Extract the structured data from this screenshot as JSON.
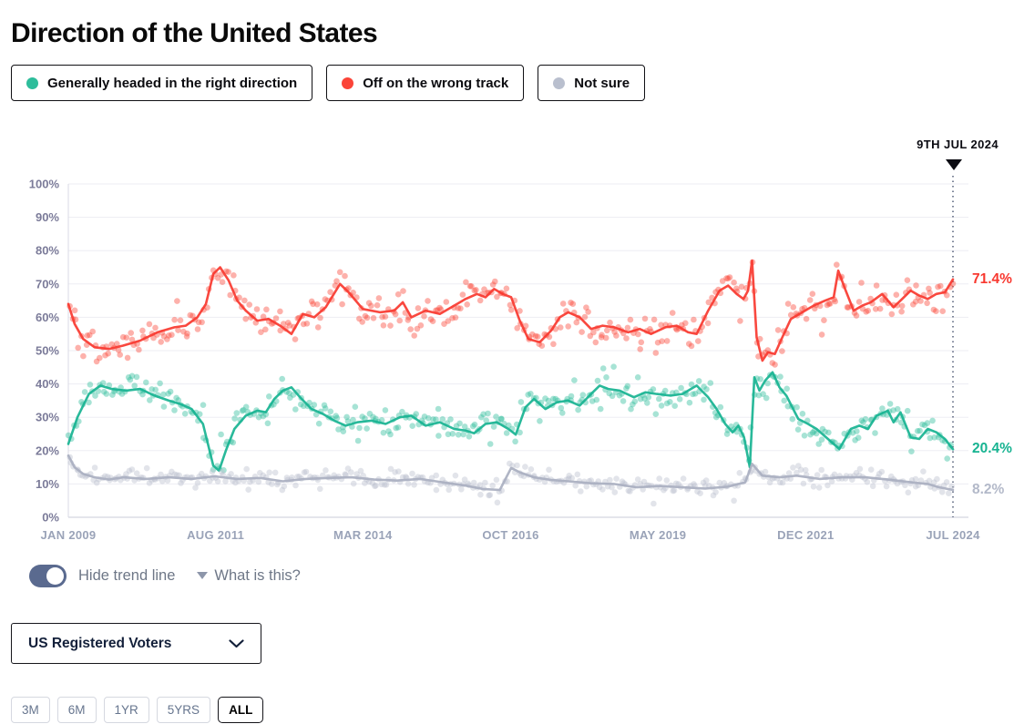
{
  "page": {
    "title": "Direction of the United States"
  },
  "legend": {
    "items": [
      {
        "label": "Generally headed in the right direction",
        "color": "#2ebd9b"
      },
      {
        "label": "Off on the wrong track",
        "color": "#fb4438"
      },
      {
        "label": "Not sure",
        "color": "#b9bfce"
      }
    ]
  },
  "controls": {
    "trend_toggle_label": "Hide trend line",
    "trend_toggle_on": true,
    "help_label": "What is this?",
    "population_select": {
      "value": "US Registered Voters"
    },
    "ranges": {
      "items": [
        "3M",
        "6M",
        "1YR",
        "5YRS",
        "ALL"
      ],
      "active": "ALL"
    }
  },
  "chart_data": {
    "type": "scatter",
    "title": "Direction of the United States",
    "marker_label": "9TH JUL 2024",
    "grid": "horizontal",
    "legend_position": "top",
    "ylim": [
      0,
      100
    ],
    "yticks": [
      0,
      10,
      20,
      30,
      40,
      50,
      60,
      70,
      80,
      90,
      100
    ],
    "ytick_suffix": "%",
    "x_range": [
      2009.04,
      2024.54
    ],
    "xticks": [
      {
        "label": "JAN 2009",
        "t": 2009.04
      },
      {
        "label": "AUG 2011",
        "t": 2011.62
      },
      {
        "label": "MAR 2014",
        "t": 2014.2
      },
      {
        "label": "OCT 2016",
        "t": 2016.79
      },
      {
        "label": "MAY 2019",
        "t": 2019.37
      },
      {
        "label": "DEC 2021",
        "t": 2021.96
      },
      {
        "label": "JUL 2024",
        "t": 2024.54
      }
    ],
    "series": [
      {
        "id": "wrong-track",
        "name": "Off on the wrong track",
        "color": "#fb4438",
        "line_color": "#f8382f",
        "end_value": 71.4,
        "end_label": "71.4%",
        "scatter_sd": 2.4,
        "trend": [
          [
            2009.04,
            64
          ],
          [
            2009.15,
            58
          ],
          [
            2009.3,
            53.5
          ],
          [
            2009.5,
            51
          ],
          [
            2009.75,
            50.5
          ],
          [
            2010,
            51.5
          ],
          [
            2010.3,
            53
          ],
          [
            2010.6,
            55.5
          ],
          [
            2010.9,
            57
          ],
          [
            2011.1,
            57.5
          ],
          [
            2011.3,
            60
          ],
          [
            2011.45,
            64
          ],
          [
            2011.58,
            73
          ],
          [
            2011.7,
            75
          ],
          [
            2011.85,
            71
          ],
          [
            2012,
            65
          ],
          [
            2012.15,
            62
          ],
          [
            2012.35,
            59
          ],
          [
            2012.55,
            59.5
          ],
          [
            2012.75,
            57.5
          ],
          [
            2012.95,
            55
          ],
          [
            2013.15,
            61
          ],
          [
            2013.35,
            60
          ],
          [
            2013.55,
            63
          ],
          [
            2013.8,
            70
          ],
          [
            2013.95,
            67.5
          ],
          [
            2014.2,
            62.5
          ],
          [
            2014.5,
            61.5
          ],
          [
            2014.75,
            62
          ],
          [
            2014.9,
            64.5
          ],
          [
            2015.05,
            60
          ],
          [
            2015.3,
            62
          ],
          [
            2015.55,
            61
          ],
          [
            2015.8,
            63.5
          ],
          [
            2016,
            65.5
          ],
          [
            2016.2,
            67
          ],
          [
            2016.35,
            66
          ],
          [
            2016.5,
            68.5
          ],
          [
            2016.65,
            67
          ],
          [
            2016.8,
            66
          ],
          [
            2016.95,
            59
          ],
          [
            2017.1,
            53.5
          ],
          [
            2017.3,
            52.5
          ],
          [
            2017.5,
            56
          ],
          [
            2017.65,
            60
          ],
          [
            2017.8,
            61.5
          ],
          [
            2018,
            60
          ],
          [
            2018.2,
            56.5
          ],
          [
            2018.4,
            57.5
          ],
          [
            2018.6,
            57
          ],
          [
            2018.85,
            55.5
          ],
          [
            2019.05,
            56.5
          ],
          [
            2019.25,
            55
          ],
          [
            2019.5,
            57
          ],
          [
            2019.7,
            57.5
          ],
          [
            2019.9,
            55.5
          ],
          [
            2020.05,
            55
          ],
          [
            2020.25,
            62
          ],
          [
            2020.45,
            68
          ],
          [
            2020.6,
            69.5
          ],
          [
            2020.75,
            67
          ],
          [
            2020.87,
            65.5
          ],
          [
            2020.95,
            68
          ],
          [
            2021.02,
            77
          ],
          [
            2021.1,
            54
          ],
          [
            2021.2,
            47
          ],
          [
            2021.3,
            49.5
          ],
          [
            2021.42,
            49
          ],
          [
            2021.55,
            54
          ],
          [
            2021.7,
            59.5
          ],
          [
            2021.95,
            62
          ],
          [
            2022.1,
            63.5
          ],
          [
            2022.3,
            65
          ],
          [
            2022.45,
            66
          ],
          [
            2022.53,
            74
          ],
          [
            2022.65,
            68.5
          ],
          [
            2022.8,
            62
          ],
          [
            2022.95,
            63.5
          ],
          [
            2023.1,
            64.5
          ],
          [
            2023.3,
            67
          ],
          [
            2023.5,
            63
          ],
          [
            2023.65,
            65.5
          ],
          [
            2023.8,
            68
          ],
          [
            2023.95,
            66.5
          ],
          [
            2024.1,
            65.5
          ],
          [
            2024.25,
            67
          ],
          [
            2024.4,
            67.5
          ],
          [
            2024.54,
            71.4
          ]
        ]
      },
      {
        "id": "right-direction",
        "name": "Generally headed in the right direction",
        "color": "#2ebd9b",
        "line_color": "#17b391",
        "end_value": 20.4,
        "end_label": "20.4%",
        "scatter_sd": 2.3,
        "trend": [
          [
            2009.04,
            22
          ],
          [
            2009.2,
            30
          ],
          [
            2009.4,
            37
          ],
          [
            2009.6,
            39.5
          ],
          [
            2009.8,
            38.5
          ],
          [
            2010.05,
            38
          ],
          [
            2010.3,
            38.5
          ],
          [
            2010.55,
            36.5
          ],
          [
            2010.8,
            35
          ],
          [
            2011,
            34
          ],
          [
            2011.2,
            32.5
          ],
          [
            2011.4,
            28
          ],
          [
            2011.58,
            15.5
          ],
          [
            2011.68,
            14
          ],
          [
            2011.8,
            20
          ],
          [
            2011.95,
            26.5
          ],
          [
            2012.15,
            30.5
          ],
          [
            2012.35,
            32
          ],
          [
            2012.5,
            31.5
          ],
          [
            2012.65,
            35.5
          ],
          [
            2012.8,
            38
          ],
          [
            2012.95,
            39
          ],
          [
            2013.1,
            36
          ],
          [
            2013.3,
            32.5
          ],
          [
            2013.5,
            31
          ],
          [
            2013.7,
            29
          ],
          [
            2013.9,
            27.5
          ],
          [
            2014.1,
            28.5
          ],
          [
            2014.35,
            29
          ],
          [
            2014.6,
            28
          ],
          [
            2014.85,
            30
          ],
          [
            2015.05,
            30.5
          ],
          [
            2015.3,
            27.5
          ],
          [
            2015.55,
            28.5
          ],
          [
            2015.8,
            26.5
          ],
          [
            2016,
            26
          ],
          [
            2016.15,
            25.2
          ],
          [
            2016.35,
            28
          ],
          [
            2016.55,
            28.5
          ],
          [
            2016.75,
            26.5
          ],
          [
            2016.88,
            24.8
          ],
          [
            2017.05,
            33
          ],
          [
            2017.2,
            35.5
          ],
          [
            2017.4,
            32.5
          ],
          [
            2017.6,
            34.5
          ],
          [
            2017.8,
            35
          ],
          [
            2018,
            33.5
          ],
          [
            2018.2,
            37
          ],
          [
            2018.35,
            39.5
          ],
          [
            2018.5,
            38.5
          ],
          [
            2018.7,
            38
          ],
          [
            2018.95,
            36
          ],
          [
            2019.15,
            37.5
          ],
          [
            2019.35,
            37
          ],
          [
            2019.6,
            36.5
          ],
          [
            2019.8,
            37
          ],
          [
            2020.05,
            39.5
          ],
          [
            2020.25,
            36
          ],
          [
            2020.4,
            32.5
          ],
          [
            2020.55,
            28
          ],
          [
            2020.68,
            25.5
          ],
          [
            2020.78,
            27.5
          ],
          [
            2020.88,
            24
          ],
          [
            2020.98,
            15
          ],
          [
            2021.06,
            42
          ],
          [
            2021.15,
            38
          ],
          [
            2021.25,
            41
          ],
          [
            2021.38,
            43.5
          ],
          [
            2021.5,
            39
          ],
          [
            2021.62,
            36.5
          ],
          [
            2021.83,
            29.5
          ],
          [
            2022,
            28
          ],
          [
            2022.15,
            26.5
          ],
          [
            2022.35,
            23.5
          ],
          [
            2022.55,
            20.5
          ],
          [
            2022.75,
            26.5
          ],
          [
            2022.9,
            27.5
          ],
          [
            2023.05,
            26.5
          ],
          [
            2023.2,
            30.5
          ],
          [
            2023.4,
            32
          ],
          [
            2023.5,
            28.5
          ],
          [
            2023.62,
            31.5
          ],
          [
            2023.8,
            24
          ],
          [
            2023.95,
            23.5
          ],
          [
            2024.1,
            26.5
          ],
          [
            2024.25,
            25.5
          ],
          [
            2024.4,
            23.5
          ],
          [
            2024.54,
            20.4
          ]
        ]
      },
      {
        "id": "not-sure",
        "name": "Not sure",
        "color": "#b9bfce",
        "line_color": "#a9afc0",
        "end_value": 8.2,
        "end_label": "8.2%",
        "scatter_sd": 1.25,
        "trend": [
          [
            2009.04,
            18.5
          ],
          [
            2009.15,
            15
          ],
          [
            2009.3,
            13
          ],
          [
            2009.5,
            12
          ],
          [
            2009.75,
            11.3
          ],
          [
            2010,
            12
          ],
          [
            2010.4,
            11.5
          ],
          [
            2010.8,
            12
          ],
          [
            2011.2,
            11.5
          ],
          [
            2011.6,
            12.3
          ],
          [
            2012,
            11.5
          ],
          [
            2012.4,
            11.8
          ],
          [
            2012.8,
            10.8
          ],
          [
            2013.2,
            11.5
          ],
          [
            2013.6,
            11.8
          ],
          [
            2014,
            12
          ],
          [
            2014.4,
            11.3
          ],
          [
            2014.8,
            11
          ],
          [
            2015.2,
            11.5
          ],
          [
            2015.6,
            10.5
          ],
          [
            2016,
            9.5
          ],
          [
            2016.3,
            8.5
          ],
          [
            2016.6,
            8.2
          ],
          [
            2016.8,
            14.8
          ],
          [
            2016.95,
            13.5
          ],
          [
            2017.2,
            12
          ],
          [
            2017.5,
            11.2
          ],
          [
            2017.8,
            10.8
          ],
          [
            2018.2,
            10.2
          ],
          [
            2018.6,
            10
          ],
          [
            2019,
            9
          ],
          [
            2019.4,
            9.4
          ],
          [
            2019.8,
            9
          ],
          [
            2020.2,
            8.6
          ],
          [
            2020.6,
            9.2
          ],
          [
            2020.9,
            10.5
          ],
          [
            2021.02,
            16
          ],
          [
            2021.2,
            12.5
          ],
          [
            2021.5,
            12
          ],
          [
            2021.8,
            12.5
          ],
          [
            2022.2,
            11.5
          ],
          [
            2022.6,
            12
          ],
          [
            2023,
            12
          ],
          [
            2023.4,
            11.3
          ],
          [
            2023.8,
            10.5
          ],
          [
            2024.1,
            10
          ],
          [
            2024.3,
            9
          ],
          [
            2024.54,
            8.2
          ]
        ]
      }
    ]
  }
}
